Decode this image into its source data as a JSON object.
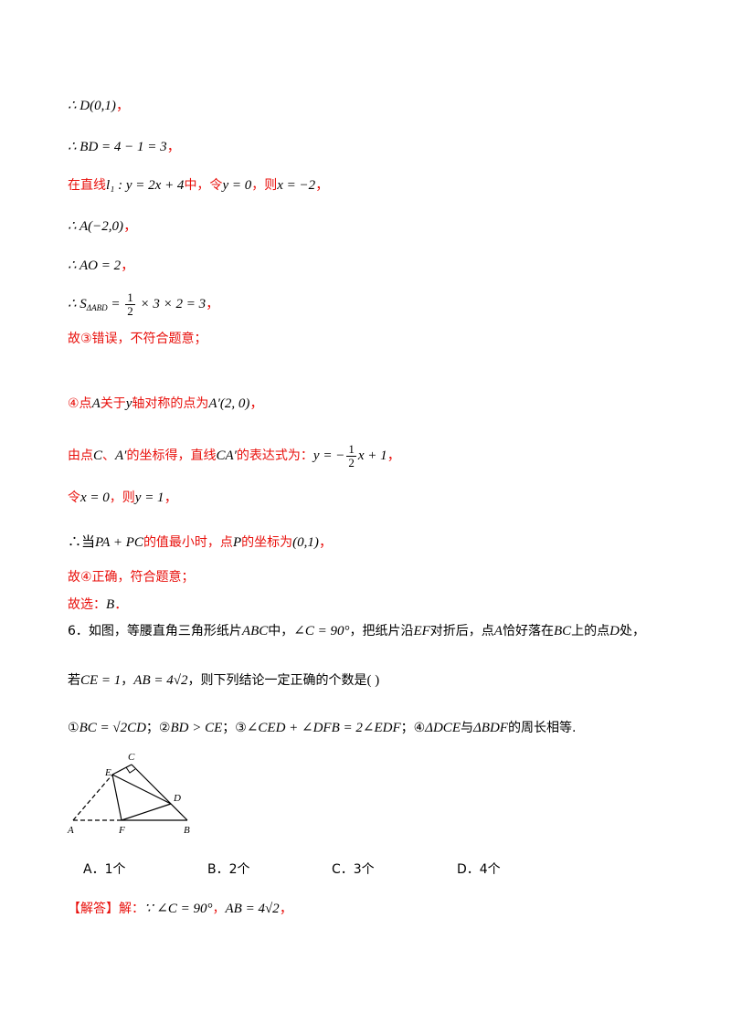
{
  "lines": {
    "l1": {
      "math": "∴ D(0,1)",
      "tail": "，"
    },
    "l2": {
      "math": "∴ BD = 4 − 1 = 3",
      "tail": "，"
    },
    "l3": {
      "pre": "在直线",
      "math": "l₁ : y = 2x + 4",
      "mid1": "中，令",
      "math2": "y = 0",
      "mid2": "，则",
      "math3": "x = −2",
      "tail": "，"
    },
    "l4": {
      "math": "∴ A(−2,0)",
      "tail": "，"
    },
    "l5": {
      "math": "∴ AO = 2",
      "tail": "，"
    },
    "l6": {
      "pre": "∴ S",
      "sub": "ΔABD",
      "eq": " = ",
      "num": "1",
      "den": "2",
      "rest": " × 3 × 2 = 3",
      "tail": "，"
    },
    "l7": {
      "text": "故③错误，不符合题意；"
    },
    "l8": {
      "pre": "④点",
      "math": "A",
      "mid": "关于",
      "math2": "y",
      "mid2": "轴对称的点为",
      "math3": "A′(2, 0)",
      "tail": "，"
    },
    "l9": {
      "pre": "由点",
      "math": "C",
      "mid": "、",
      "math2": "A′",
      "mid2": "的坐标得，直线",
      "math3": "CA′",
      "mid3": "的表达式为：",
      "eq": "y = −",
      "num": "1",
      "den": "2",
      "rest": "x + 1",
      "tail": "，"
    },
    "l10": {
      "pre": "令",
      "math": "x = 0",
      "mid": "，则",
      "math2": "y = 1",
      "tail": "，"
    },
    "l11": {
      "pre": "∴当",
      "math": "PA + PC",
      "mid": "的值最小时，点",
      "math2": "P",
      "mid2": "的坐标为",
      "math3": "(0,1)",
      "tail": "，"
    },
    "l12": {
      "text": "故④正确，符合题意；"
    },
    "l13": {
      "pre": "故选：",
      "math": "B",
      "tail": "．"
    },
    "q6a": {
      "pre": "6．如图，等腰直角三角形纸片",
      "math": "ABC",
      "mid": "中，",
      "math2": "∠C = 90°",
      "mid2": "，把纸片沿",
      "math3": "EF",
      "mid3": "对折后，点",
      "math4": "A",
      "mid4": "恰好落在",
      "math5": "BC",
      "mid5": "上的点",
      "math6": "D",
      "tail": "处，"
    },
    "q6b": {
      "pre": "若",
      "math": "CE = 1",
      "mid": "，",
      "math2": "AB = 4√2",
      "mid2": "，则下列结论一定正确的个数是",
      "tail": "(        )"
    },
    "q6c": {
      "c1": "①",
      "m1": "BC = √2CD",
      "s1": "；②",
      "m2": "BD > CE",
      "s2": "；③",
      "m3": "∠CED + ∠DFB = 2∠EDF",
      "s3": "；④",
      "m4": "ΔDCE",
      "s4": "与",
      "m5": "ΔBDF",
      "s5": "的周长相等."
    },
    "ans": {
      "pre": "【解答】解：",
      "math": "∵ ∠C = 90°",
      "mid": "，",
      "math2": "AB = 4√2",
      "tail": "，"
    }
  },
  "options": [
    "A．1个",
    "B．2个",
    "C．3个",
    "D．4个"
  ],
  "figure": {
    "labels": {
      "C": "C",
      "E": "E",
      "D": "D",
      "A": "A",
      "F": "F",
      "B": "B"
    }
  },
  "colors": {
    "red": "#e8100c",
    "black": "#000000"
  }
}
